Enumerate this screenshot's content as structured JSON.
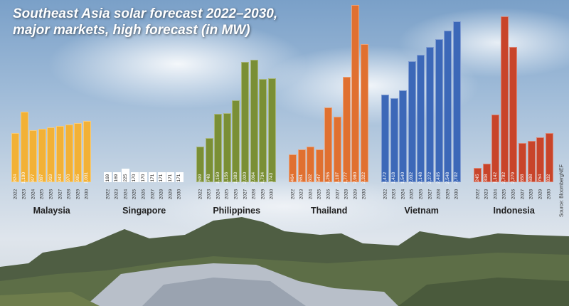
{
  "title": {
    "line1": "Southeast Asia solar forecast 2022–2030,",
    "line2": "major markets, high forecast (in MW)"
  },
  "source": "Source: BloombergNEF",
  "chart_data": {
    "type": "bar",
    "title": "Southeast Asia solar forecast 2022–2030, major markets, high forecast (in MW)",
    "xlabel": "",
    "ylabel": "MW",
    "grid": false,
    "legend": "none (country labels beneath each group)",
    "categories": [
      "2022",
      "2023",
      "2024",
      "2025",
      "2026",
      "2027",
      "2028",
      "2029",
      "2030"
    ],
    "series": [
      {
        "name": "Malaysia",
        "color": "#f2b136",
        "values": [
          824,
          1190,
          877,
          897,
          919,
          943,
          970,
          995,
          1031
        ],
        "labels": [
          "824",
          "1,190",
          "877",
          "897",
          "919",
          "943",
          "970",
          "995",
          "1,031"
        ]
      },
      {
        "name": "Singapore",
        "color": "#ffffff",
        "values": [
          169,
          169,
          225,
          170,
          170,
          171,
          171,
          171,
          171
        ],
        "labels": [
          "169",
          "169",
          "225",
          "170",
          "170",
          "171",
          "171",
          "171",
          "171"
        ]
      },
      {
        "name": "Philippines",
        "color": "#7a8f35",
        "values": [
          599,
          748,
          1150,
          1156,
          1383,
          2020,
          2064,
          1734,
          1743
        ],
        "labels": [
          "599",
          "748",
          "1,150",
          "1,156",
          "1,383",
          "2,020",
          "2,064",
          "1,734",
          "1743"
        ]
      },
      {
        "name": "Thailand",
        "color": "#e07030",
        "values": [
          464,
          551,
          602,
          547,
          1255,
          1107,
          1777,
          2980,
          2322
        ],
        "labels": [
          "464",
          "551",
          "602",
          "547",
          "1,255",
          "1,107",
          "1,777",
          "2,980",
          "2,322"
        ]
      },
      {
        "name": "Vietnam",
        "color": "#3c68b8",
        "values": [
          1472,
          1418,
          1540,
          2032,
          2148,
          2272,
          2405,
          2548,
          2702
        ],
        "labels": [
          "1,472",
          "1,418",
          "1,540",
          "2,032",
          "2,148",
          "2,272",
          "2,405",
          "2,548",
          "2,702"
        ]
      },
      {
        "name": "Indonesia",
        "color": "#c8442a",
        "values": [
          245,
          308,
          1142,
          2792,
          2279,
          658,
          698,
          754,
          832
        ],
        "labels": [
          "245",
          "308",
          "1,142",
          "2,792",
          "2,279",
          "658",
          "698",
          "754",
          "832"
        ]
      }
    ]
  }
}
